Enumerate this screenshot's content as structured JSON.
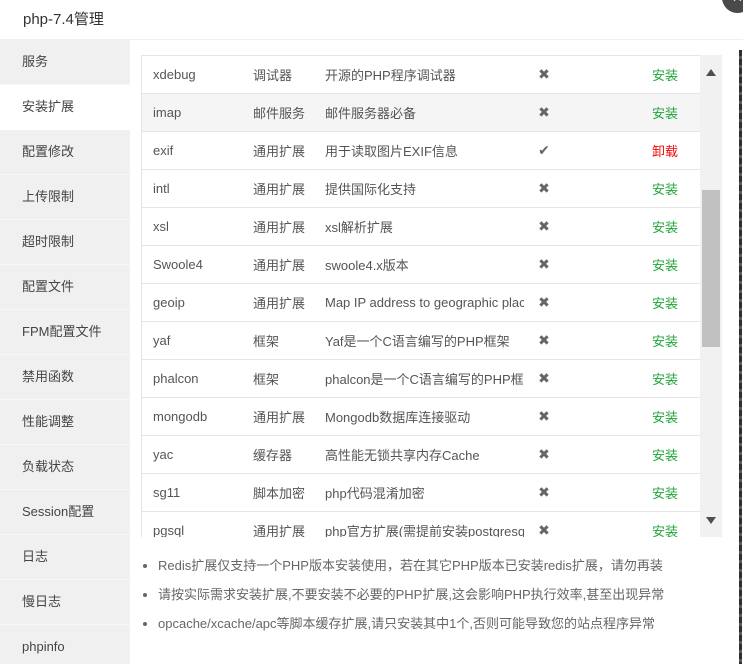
{
  "window": {
    "title": "php-7.4管理",
    "close_icon": "✕"
  },
  "sidebar": {
    "items": [
      {
        "label": "服务",
        "active": false
      },
      {
        "label": "安装扩展",
        "active": true
      },
      {
        "label": "配置修改",
        "active": false
      },
      {
        "label": "上传限制",
        "active": false
      },
      {
        "label": "超时限制",
        "active": false
      },
      {
        "label": "配置文件",
        "active": false
      },
      {
        "label": "FPM配置文件",
        "active": false
      },
      {
        "label": "禁用函数",
        "active": false
      },
      {
        "label": "性能调整",
        "active": false
      },
      {
        "label": "负载状态",
        "active": false
      },
      {
        "label": "Session配置",
        "active": false
      },
      {
        "label": "日志",
        "active": false
      },
      {
        "label": "慢日志",
        "active": false
      },
      {
        "label": "phpinfo",
        "active": false
      }
    ]
  },
  "extensions": {
    "installed_icon": "✔",
    "not_installed_icon": "✖",
    "install_color": "#20a53a",
    "uninstall_color": "#ef0808",
    "rows": [
      {
        "name": "xdebug",
        "type": "调试器",
        "desc": "开源的PHP程序调试器",
        "installed": false,
        "action": "安装",
        "hovered": false
      },
      {
        "name": "imap",
        "type": "邮件服务",
        "desc": "邮件服务器必备",
        "installed": false,
        "action": "安装",
        "hovered": true
      },
      {
        "name": "exif",
        "type": "通用扩展",
        "desc": "用于读取图片EXIF信息",
        "installed": true,
        "action": "卸载",
        "hovered": false
      },
      {
        "name": "intl",
        "type": "通用扩展",
        "desc": "提供国际化支持",
        "installed": false,
        "action": "安装",
        "hovered": false
      },
      {
        "name": "xsl",
        "type": "通用扩展",
        "desc": "xsl解析扩展",
        "installed": false,
        "action": "安装",
        "hovered": false
      },
      {
        "name": "Swoole4",
        "type": "通用扩展",
        "desc": "swoole4.x版本",
        "installed": false,
        "action": "安装",
        "hovered": false
      },
      {
        "name": "geoip",
        "type": "通用扩展",
        "desc": "Map IP address to geographic places",
        "installed": false,
        "action": "安装",
        "hovered": false
      },
      {
        "name": "yaf",
        "type": "框架",
        "desc": "Yaf是一个C语言编写的PHP框架",
        "installed": false,
        "action": "安装",
        "hovered": false
      },
      {
        "name": "phalcon",
        "type": "框架",
        "desc": "phalcon是一个C语言编写的PHP框架",
        "installed": false,
        "action": "安装",
        "hovered": false
      },
      {
        "name": "mongodb",
        "type": "通用扩展",
        "desc": "Mongodb数据库连接驱动",
        "installed": false,
        "action": "安装",
        "hovered": false
      },
      {
        "name": "yac",
        "type": "缓存器",
        "desc": "高性能无锁共享内存Cache",
        "installed": false,
        "action": "安装",
        "hovered": false
      },
      {
        "name": "sg11",
        "type": "脚本加密",
        "desc": "php代码混淆加密",
        "installed": false,
        "action": "安装",
        "hovered": false
      },
      {
        "name": "pgsql",
        "type": "通用扩展",
        "desc": "php官方扩展(需提前安装postgresql)",
        "installed": false,
        "action": "安装",
        "hovered": false
      }
    ]
  },
  "notes": {
    "items": [
      "Redis扩展仅支持一个PHP版本安装使用，若在其它PHP版本已安装redis扩展，请勿再装",
      "请按实际需求安装扩展,不要安装不必要的PHP扩展,这会影响PHP执行效率,甚至出现异常",
      "opcache/xcache/apc等脚本缓存扩展,请只安装其中1个,否则可能导致您的站点程序异常"
    ]
  }
}
